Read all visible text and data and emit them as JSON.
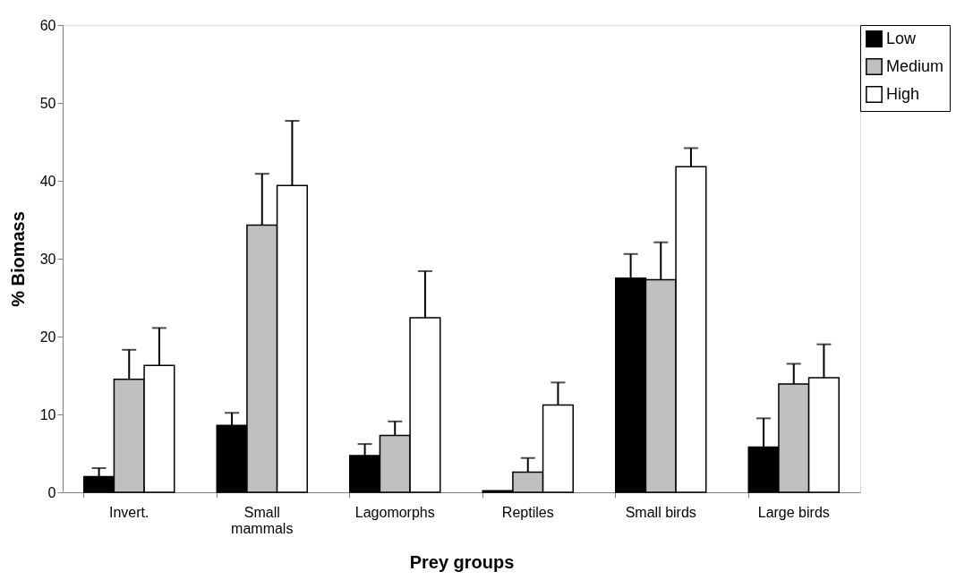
{
  "chart_data": {
    "type": "bar",
    "xlabel": "Prey groups",
    "ylabel": "% Biomass",
    "categories": [
      "Invert.",
      "Small mammals",
      "Lagomorphs",
      "Reptiles",
      "Small birds",
      "Large birds"
    ],
    "series": [
      {
        "name": "Low",
        "color": "#000000",
        "values": [
          2.0,
          8.6,
          4.7,
          0.2,
          27.5,
          5.8
        ],
        "errors": [
          [
            2.0,
            3.1
          ],
          [
            8.6,
            10.2
          ],
          [
            4.7,
            6.2
          ],
          null,
          [
            27.5,
            30.6
          ],
          [
            5.8,
            9.5
          ]
        ]
      },
      {
        "name": "Medium",
        "color": "#c0c0c0",
        "values": [
          14.5,
          34.3,
          7.3,
          2.6,
          27.3,
          13.9
        ],
        "errors": [
          [
            14.5,
            18.3
          ],
          [
            34.3,
            40.9
          ],
          [
            7.3,
            9.1
          ],
          [
            2.6,
            4.4
          ],
          [
            27.3,
            32.1
          ],
          [
            13.9,
            16.5
          ]
        ]
      },
      {
        "name": "High",
        "color": "#ffffff",
        "values": [
          16.3,
          39.4,
          22.4,
          11.2,
          41.8,
          14.7
        ],
        "errors": [
          [
            16.3,
            21.1
          ],
          [
            39.4,
            47.7
          ],
          [
            22.4,
            28.4
          ],
          [
            11.2,
            14.1
          ],
          [
            41.8,
            44.2
          ],
          [
            14.7,
            19.0
          ]
        ]
      }
    ],
    "ylim": [
      0,
      60
    ],
    "yticks": [
      0,
      10,
      20,
      30,
      40,
      50,
      60
    ],
    "grid": false,
    "legend": "top right"
  }
}
